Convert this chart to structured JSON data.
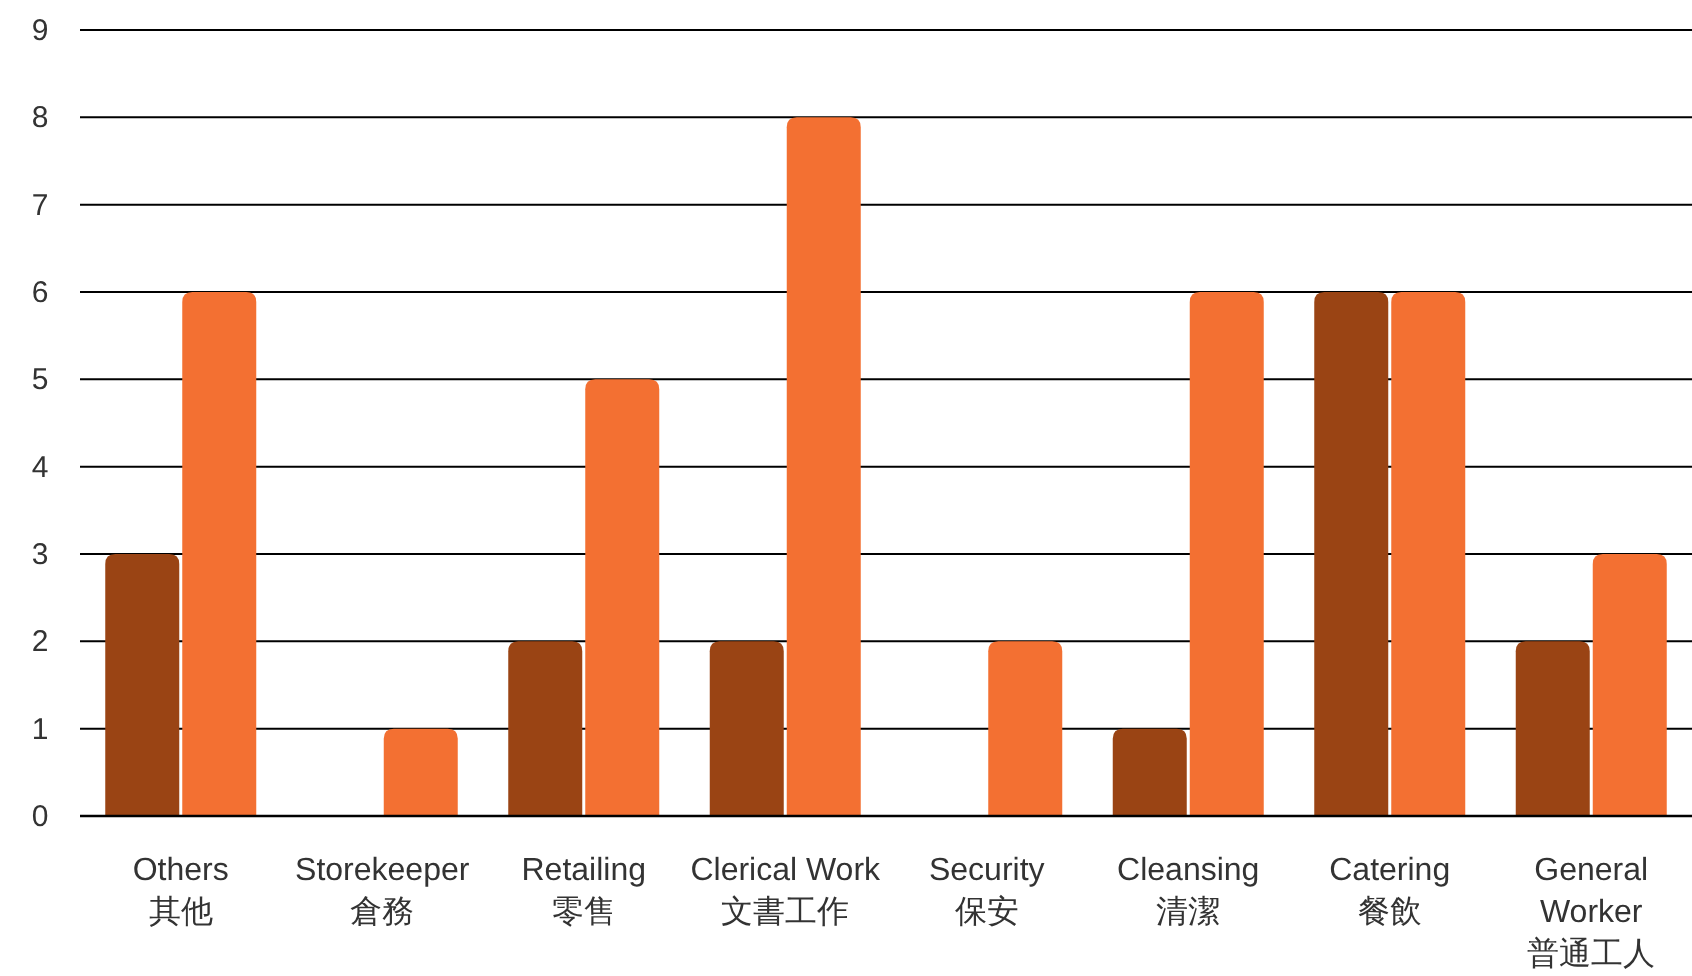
{
  "chart_data": {
    "type": "bar",
    "categories": [
      "Others\n其他",
      "Storekeeper\n倉務",
      "Retailing\n零售",
      "Clerical Work\n文書工作",
      "Security\n保安",
      "Cleansing\n清潔",
      "Catering\n餐飲",
      "General\nWorker\n普通工人"
    ],
    "series": [
      {
        "color": "#9a4414",
        "values": [
          3,
          0,
          2,
          2,
          0,
          1,
          6,
          2
        ]
      },
      {
        "color": "#f37032",
        "values": [
          6,
          1,
          5,
          8,
          2,
          6,
          6,
          3
        ]
      }
    ],
    "ylim": [
      0,
      9
    ],
    "yticks": [
      0,
      1,
      2,
      3,
      4,
      5,
      6,
      7,
      8,
      9
    ],
    "grid": "y"
  }
}
